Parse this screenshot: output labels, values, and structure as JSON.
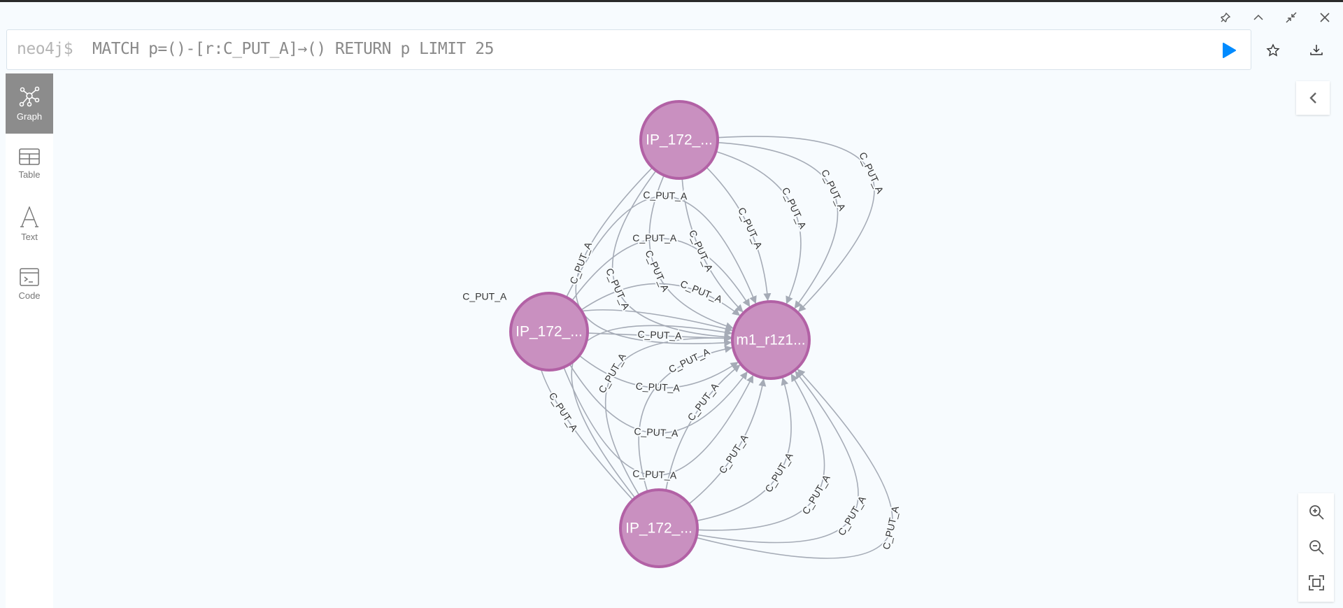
{
  "window_controls": {
    "pin": "pin-icon",
    "collapse": "chevron-up-icon",
    "shrink": "shrink-icon",
    "close": "close-icon"
  },
  "editor": {
    "prompt": "neo4j$",
    "query": "MATCH p=()-[r:C_PUT_A]→() RETURN p LIMIT 25"
  },
  "colors": {
    "accent": "#018bff",
    "node_fill": "#c990c0",
    "node_stroke": "#b261a5",
    "edge": "#a5abb6"
  },
  "sidebar": {
    "items": [
      {
        "label": "Graph",
        "icon": "graph-icon",
        "active": true
      },
      {
        "label": "Table",
        "icon": "table-icon",
        "active": false
      },
      {
        "label": "Text",
        "icon": "text-icon",
        "active": false
      },
      {
        "label": "Code",
        "icon": "code-icon",
        "active": false
      }
    ]
  },
  "graph": {
    "nodes": [
      {
        "id": "top",
        "label": "IP_172_..."
      },
      {
        "id": "left",
        "label": "IP_172_..."
      },
      {
        "id": "bottom",
        "label": "IP_172_..."
      },
      {
        "id": "target",
        "label": "m1_r1z1..."
      }
    ],
    "relationship_type": "C_PUT_A",
    "edge_counts": {
      "top": 8,
      "left": 7,
      "bottom": 10
    }
  }
}
